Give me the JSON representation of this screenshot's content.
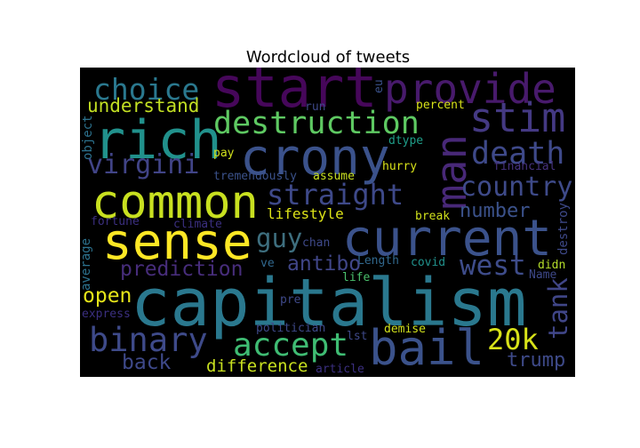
{
  "chart_data": {
    "type": "wordcloud",
    "title": "Wordcloud of tweets",
    "background": "#000000",
    "words": [
      {
        "text": "start",
        "color": "#46075a"
      },
      {
        "text": "provide",
        "color": "#481a6c"
      },
      {
        "text": "choice",
        "color": "#2a788e"
      },
      {
        "text": "eu",
        "color": "#3b528b"
      },
      {
        "text": "rich",
        "color": "#21918c"
      },
      {
        "text": "crony",
        "color": "#3b528b"
      },
      {
        "text": "destruction",
        "color": "#5ec962"
      },
      {
        "text": "stim",
        "color": "#443983"
      },
      {
        "text": "man",
        "color": "#482878"
      },
      {
        "text": "understand",
        "color": "#c2df23"
      },
      {
        "text": "run",
        "color": "#3e4989"
      },
      {
        "text": "percent",
        "color": "#d8e219"
      },
      {
        "text": "object",
        "color": "#2c728e"
      },
      {
        "text": "death",
        "color": "#3e4989"
      },
      {
        "text": "dtype",
        "color": "#1f9e89"
      },
      {
        "text": "virgini",
        "color": "#414487"
      },
      {
        "text": "pay",
        "color": "#d0e11c"
      },
      {
        "text": "tremendously",
        "color": "#3b528b"
      },
      {
        "text": "hurry",
        "color": "#d8e219"
      },
      {
        "text": "financial",
        "color": "#46327e"
      },
      {
        "text": "assume",
        "color": "#c8e020"
      },
      {
        "text": "country",
        "color": "#3e4a89"
      },
      {
        "text": "common",
        "color": "#c8e020"
      },
      {
        "text": "straight",
        "color": "#3e4989"
      },
      {
        "text": "fortune",
        "color": "#3b2f80"
      },
      {
        "text": "climate",
        "color": "#3b2f80"
      },
      {
        "text": "lifestyle",
        "color": "#dde318"
      },
      {
        "text": "break",
        "color": "#d0e11c"
      },
      {
        "text": "number",
        "color": "#3b528b"
      },
      {
        "text": "destroy",
        "color": "#3e4989"
      },
      {
        "text": "sense",
        "color": "#fde725"
      },
      {
        "text": "guy",
        "color": "#3e6f7f"
      },
      {
        "text": "current",
        "color": "#3b528b"
      },
      {
        "text": "average",
        "color": "#2c728e"
      },
      {
        "text": "chan",
        "color": "#3e4989"
      },
      {
        "text": "Length",
        "color": "#31688e"
      },
      {
        "text": "prediction",
        "color": "#472d7b"
      },
      {
        "text": "ve",
        "color": "#31688e"
      },
      {
        "text": "antibo",
        "color": "#404688"
      },
      {
        "text": "covid",
        "color": "#21918c"
      },
      {
        "text": "west",
        "color": "#3e4c8a"
      },
      {
        "text": "didn",
        "color": "#b5de2b"
      },
      {
        "text": "Name",
        "color": "#3e4989"
      },
      {
        "text": "life",
        "color": "#4ac16d"
      },
      {
        "text": "open",
        "color": "#e5e419"
      },
      {
        "text": "capitalism",
        "color": "#2a788e"
      },
      {
        "text": "tank",
        "color": "#404688"
      },
      {
        "text": "pre",
        "color": "#3e4989"
      },
      {
        "text": "express",
        "color": "#3b2f80"
      },
      {
        "text": "binary",
        "color": "#3e4a89"
      },
      {
        "text": "accept",
        "color": "#3fbc73"
      },
      {
        "text": "bail",
        "color": "#3b528b"
      },
      {
        "text": "20k",
        "color": "#d8e219"
      },
      {
        "text": "politician",
        "color": "#3e4989"
      },
      {
        "text": "demise",
        "color": "#d0e11c"
      },
      {
        "text": "lst",
        "color": "#3e4989"
      },
      {
        "text": "back",
        "color": "#3e4989"
      },
      {
        "text": "difference",
        "color": "#c8e020"
      },
      {
        "text": "article",
        "color": "#3b2f80"
      },
      {
        "text": "trump",
        "color": "#3e4a89"
      }
    ]
  }
}
